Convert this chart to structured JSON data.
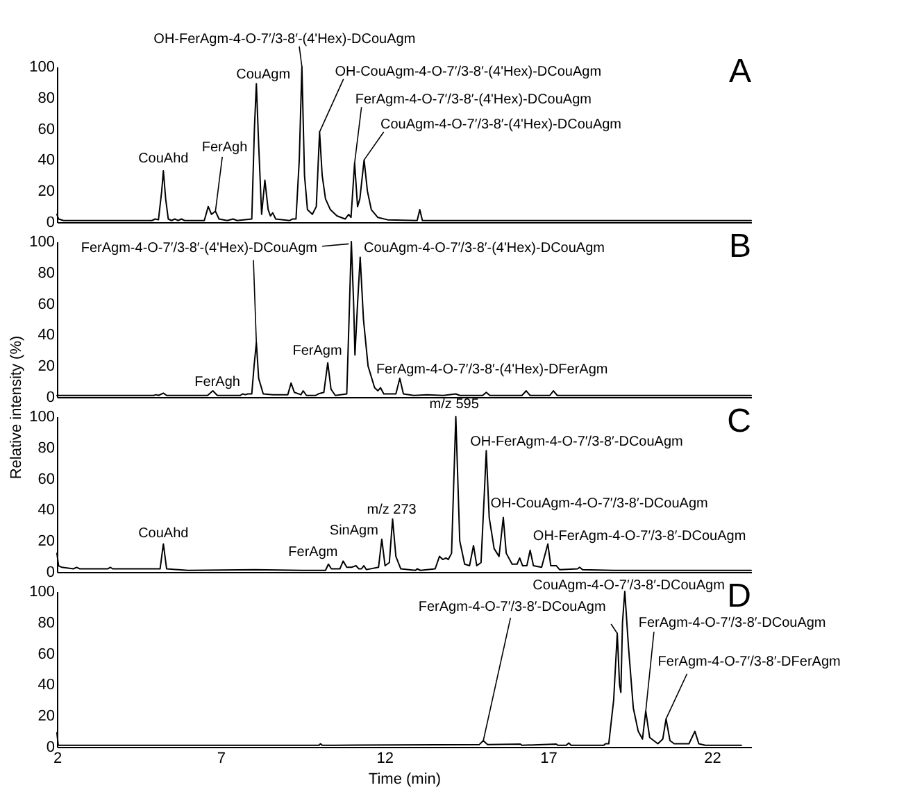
{
  "chart_data": [
    {
      "type": "line",
      "xlim": [
        2,
        23.2
      ],
      "ylim": [
        0,
        100
      ],
      "yticks": [
        0,
        20,
        40,
        60,
        80,
        100
      ],
      "tick_labels": "y",
      "grid": false,
      "marker": "none",
      "line_style": "solid",
      "series": [
        {
          "color": "#000000",
          "x": [
            2.0,
            2.05,
            2.2,
            4.9,
            5.0,
            5.1,
            5.2,
            5.25,
            5.32,
            5.4,
            5.5,
            5.6,
            5.7,
            5.8,
            5.9,
            6.5,
            6.62,
            6.72,
            6.84,
            6.95,
            7.2,
            7.38,
            7.5,
            7.95,
            8.03,
            8.09,
            8.16,
            8.25,
            8.35,
            8.45,
            8.52,
            8.59,
            8.68,
            9.1,
            9.19,
            9.3,
            9.4,
            9.48,
            9.56,
            9.65,
            9.8,
            9.92,
            10.02,
            10.1,
            10.2,
            10.35,
            10.55,
            10.8,
            10.91,
            10.98,
            11.09,
            11.18,
            11.25,
            11.38,
            11.48,
            11.6,
            11.8,
            12.1,
            13.0,
            13.08,
            13.16,
            14.0,
            23.2
          ],
          "values": [
            5,
            2,
            1,
            1,
            2,
            1.5,
            20,
            33,
            15,
            2,
            1,
            2,
            1,
            2,
            1,
            1,
            10,
            5,
            7,
            2,
            1,
            2,
            1,
            2,
            60,
            89,
            50,
            5,
            27,
            8,
            4,
            6,
            2,
            1,
            2,
            2,
            40,
            100,
            30,
            8,
            5,
            10,
            58,
            30,
            15,
            8,
            4,
            2,
            5,
            3,
            38,
            10,
            15,
            40,
            20,
            8,
            3,
            1.5,
            1,
            8,
            1,
            1,
            1
          ]
        }
      ],
      "annotations": [
        {
          "text": "CouAhd",
          "x": 5.25,
          "y": 33
        },
        {
          "text": "FerAgh",
          "x": 6.84,
          "y": 7
        },
        {
          "text": "CouAgm",
          "x": 8.09,
          "y": 89
        },
        {
          "text": "OH-FerAgm-4-O-7′/3-8′-(4'Hex)-DCouAgm",
          "x": 9.48,
          "y": 100
        },
        {
          "text": "OH-CouAgm-4-O-7′/3-8′-(4'Hex)-DCouAgm",
          "x": 10.02,
          "y": 58
        },
        {
          "text": "FerAgm-4-O-7′/3-8′-(4'Hex)-DCouAgm",
          "x": 11.09,
          "y": 38
        },
        {
          "text": "CouAgm-4-O-7′/3-8′-(4'Hex)-DCouAgm",
          "x": 11.38,
          "y": 40
        },
        "A"
      ]
    },
    {
      "type": "line",
      "xlim": [
        2,
        23.2
      ],
      "ylim": [
        0,
        100
      ],
      "yticks": [
        0,
        20,
        40,
        60,
        80,
        100
      ],
      "tick_labels": "y",
      "grid": false,
      "marker": "none",
      "line_style": "solid",
      "ylabel": "Relative intensity (%)",
      "series": [
        {
          "color": "#000000",
          "x": [
            2.0,
            4.95,
            5.03,
            5.1,
            5.25,
            5.35,
            6.6,
            6.76,
            6.9,
            7.6,
            7.67,
            7.75,
            7.83,
            7.95,
            8.02,
            8.09,
            8.16,
            8.3,
            8.6,
            9.05,
            9.15,
            9.25,
            9.45,
            9.52,
            9.62,
            9.9,
            9.98,
            10.15,
            10.27,
            10.37,
            10.5,
            10.85,
            10.92,
            10.99,
            11.06,
            11.1,
            11.18,
            11.26,
            11.36,
            11.5,
            11.7,
            11.8,
            11.88,
            11.98,
            12.35,
            12.47,
            12.58,
            12.9,
            13.3,
            13.8,
            14.18,
            14.3,
            15.0,
            15.11,
            15.22,
            16.2,
            16.33,
            16.45,
            17.05,
            17.16,
            17.28,
            23.2
          ],
          "values": [
            1,
            1,
            1.5,
            1,
            2.5,
            1,
            1,
            4,
            1,
            1,
            2,
            1.5,
            2,
            2,
            20,
            35,
            12,
            2,
            1.5,
            1.5,
            9,
            3,
            1.5,
            4,
            1,
            1,
            2,
            3,
            22,
            5,
            1,
            2,
            50,
            100,
            60,
            27,
            60,
            90,
            50,
            20,
            6,
            4,
            6,
            2,
            2,
            12,
            2,
            1,
            1.5,
            1,
            2,
            1,
            1,
            3,
            1,
            1,
            4,
            1,
            1,
            4,
            1,
            1
          ]
        }
      ],
      "annotations": [
        {
          "text": "FerAgm-4-O-7′/3-8′-(4'Hex)-DCouAgm",
          "x": 8.09,
          "y": 35
        },
        {
          "text": "CouAgm-4-O-7′/3-8′-(4'Hex)-DCouAgm",
          "x": 10.99,
          "y": 100
        },
        {
          "text": "FerAgh",
          "x": 6.76,
          "y": 4
        },
        {
          "text": "FerAgm",
          "x": 10.27,
          "y": 22
        },
        {
          "text": "FerAgm-4-O-7′/3-8′-(4'Hex)-DFerAgm",
          "x": 12.47,
          "y": 12
        },
        "B"
      ]
    },
    {
      "type": "line",
      "xlim": [
        2,
        23.2
      ],
      "ylim": [
        0,
        100
      ],
      "yticks": [
        0,
        20,
        40,
        60,
        80,
        100
      ],
      "tick_labels": "y",
      "grid": false,
      "marker": "none",
      "line_style": "solid",
      "series": [
        {
          "color": "#000000",
          "x": [
            2.0,
            2.05,
            2.15,
            2.5,
            2.6,
            2.7,
            3.55,
            3.63,
            3.7,
            5.15,
            5.25,
            5.35,
            6.0,
            8.05,
            9.5,
            10.2,
            10.29,
            10.38,
            10.64,
            10.74,
            10.85,
            11.0,
            11.13,
            11.22,
            11.3,
            11.37,
            11.45,
            11.82,
            11.92,
            12.02,
            12.15,
            12.25,
            12.35,
            12.5,
            12.95,
            13.0,
            13.1,
            13.55,
            13.68,
            13.78,
            13.88,
            13.95,
            14.05,
            14.18,
            14.3,
            14.45,
            14.6,
            14.72,
            14.82,
            14.95,
            15.05,
            15.11,
            15.2,
            15.35,
            15.5,
            15.63,
            15.72,
            15.9,
            16.05,
            16.13,
            16.22,
            16.35,
            16.45,
            16.55,
            16.8,
            16.99,
            17.08,
            17.25,
            17.35,
            17.9,
            17.96,
            18.05,
            19.0,
            23.2
          ],
          "values": [
            12,
            4,
            3,
            2,
            3,
            2,
            2,
            3,
            2,
            2,
            18,
            2,
            1,
            1.5,
            1,
            1,
            5,
            2,
            2,
            7,
            3,
            3,
            4,
            2,
            2,
            4,
            1.5,
            3,
            21,
            4,
            6,
            34,
            10,
            2,
            1,
            2,
            1,
            2,
            10,
            8,
            9,
            8,
            12,
            100,
            20,
            5,
            4,
            17,
            4,
            6,
            50,
            78,
            35,
            15,
            10,
            35,
            12,
            5,
            5,
            9,
            4,
            4,
            14,
            4,
            3,
            18,
            4,
            4,
            1.5,
            2,
            3,
            1.5,
            1,
            1
          ]
        }
      ],
      "annotations": [
        {
          "text": "CouAhd",
          "x": 5.25,
          "y": 18
        },
        {
          "text": "FerAgm",
          "x": 10.29,
          "y": 5
        },
        {
          "text": "SinAgm",
          "x": 11.92,
          "y": 21
        },
        {
          "text": "m/z 273",
          "x": 12.25,
          "y": 34
        },
        {
          "text": "m/z 595",
          "x": 14.18,
          "y": 100
        },
        {
          "text": "OH-FerAgm-4-O-7′/3-8′-DCouAgm",
          "x": 15.11,
          "y": 78
        },
        {
          "text": "OH-CouAgm-4-O-7′/3-8′-DCouAgm",
          "x": 15.63,
          "y": 35
        },
        {
          "text": "OH-FerAgm-4-O-7′/3-8′-DCouAgm",
          "x": 16.99,
          "y": 18
        },
        "C"
      ]
    },
    {
      "type": "line",
      "xlim": [
        2,
        23.2
      ],
      "ylim": [
        0,
        100
      ],
      "xticks": [
        2,
        7,
        12,
        17,
        22
      ],
      "yticks": [
        0,
        20,
        40,
        60,
        80,
        100
      ],
      "grid": false,
      "marker": "none",
      "line_style": "solid",
      "xlabel": "Time (min)",
      "series": [
        {
          "color": "#000000",
          "x": [
            2.0,
            2.04,
            10.0,
            10.05,
            10.1,
            10.46,
            14.9,
            15.02,
            15.15,
            16.15,
            16.2,
            17.24,
            17.3,
            17.55,
            17.63,
            17.7,
            18.7,
            18.75,
            18.85,
            19.0,
            19.11,
            19.18,
            19.22,
            19.27,
            19.34,
            19.45,
            19.6,
            19.75,
            19.88,
            19.98,
            20.1,
            20.35,
            20.5,
            20.6,
            20.72,
            20.85,
            21.0,
            21.3,
            21.48,
            21.6,
            21.8,
            22.9
          ],
          "values": [
            9,
            1,
            1,
            2,
            1,
            1,
            1.5,
            4,
            1.5,
            1.8,
            1,
            1.8,
            1,
            1,
            2.5,
            1,
            1,
            2,
            2,
            30,
            73,
            40,
            35,
            80,
            100,
            65,
            25,
            10,
            5,
            23,
            6,
            2,
            5,
            18,
            4,
            2,
            2,
            2,
            10,
            2,
            1,
            1
          ]
        }
      ],
      "annotations": [
        {
          "text": "FerAgm-4-O-7′/3-8′-DCouAgm",
          "x": 15.02,
          "y": 4
        },
        {
          "text": "CouAgm-4-O-7′/3-8′-DCouAgm",
          "x": 19.11,
          "y": 73
        },
        {
          "text": "FerAgm-4-O-7′/3-8′-DCouAgm",
          "x": 19.98,
          "y": 23
        },
        {
          "text": "FerAgm-4-O-7′/3-8′-DFerAgm",
          "x": 20.6,
          "y": 18
        },
        "D"
      ]
    }
  ]
}
